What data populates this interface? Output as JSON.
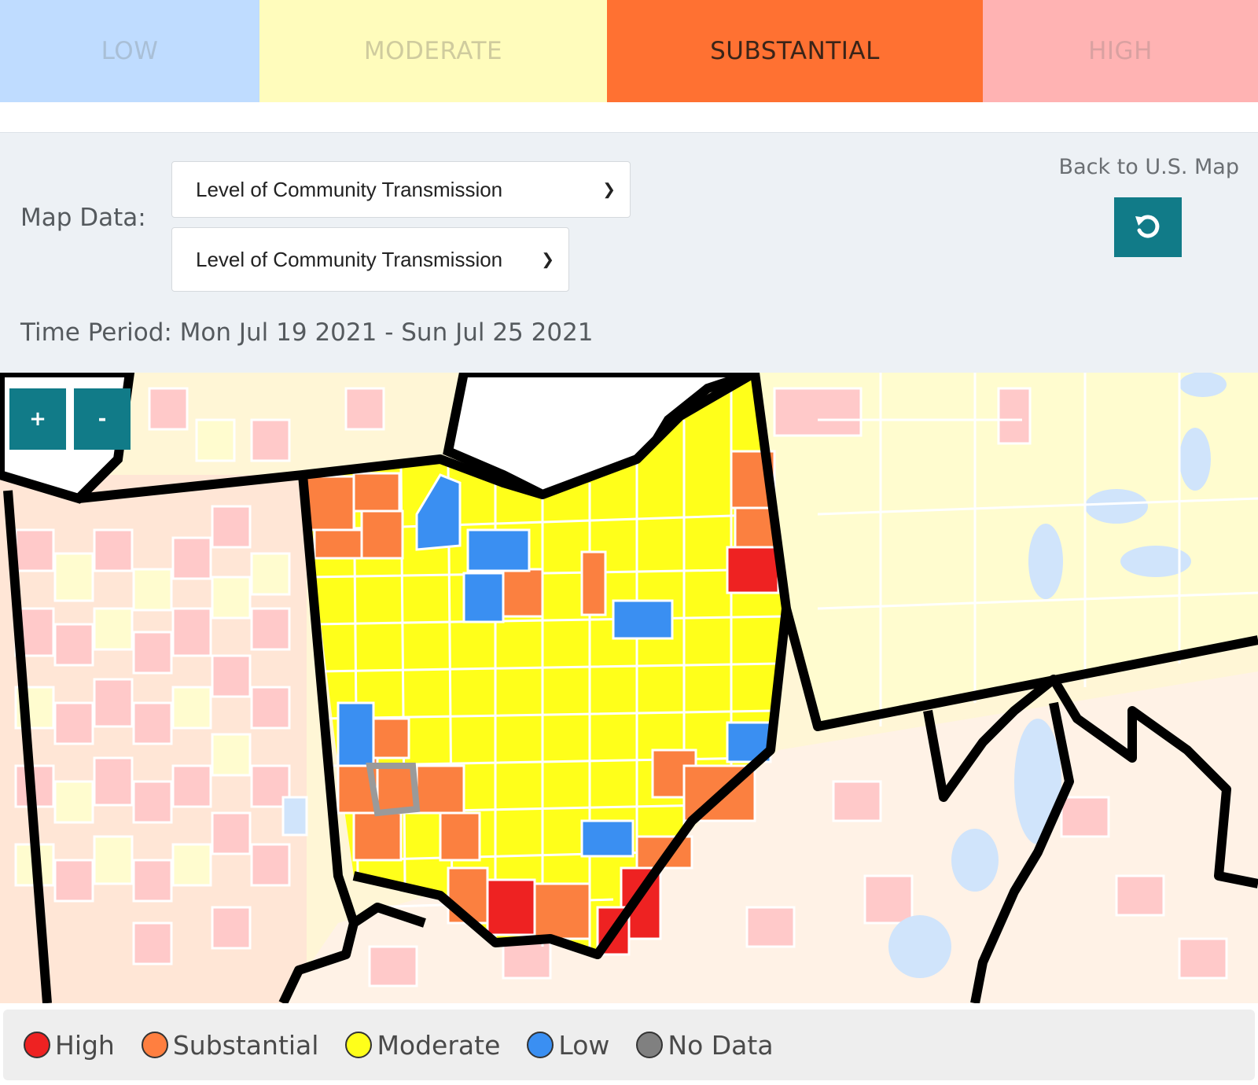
{
  "levels": [
    {
      "label": "LOW"
    },
    {
      "label": "MODERATE"
    },
    {
      "label": "SUBSTANTIAL"
    },
    {
      "label": "HIGH"
    }
  ],
  "controls": {
    "map_data_label": "Map Data:",
    "select_primary": "Level of Community Transmission",
    "select_secondary": "Level of Community Transmission",
    "back_label": "Back to U.S. Map",
    "reset_icon": "undo-arrow-icon",
    "time_period": "Time Period: Mon Jul 19 2021 - Sun Jul 25 2021"
  },
  "zoom": {
    "in_label": "+",
    "out_label": "-"
  },
  "legend": [
    {
      "label": "High",
      "color": "#ee2222"
    },
    {
      "label": "Substantial",
      "color": "#ff7f40"
    },
    {
      "label": "Moderate",
      "color": "#ffff1a"
    },
    {
      "label": "Low",
      "color": "#3a8ff2"
    },
    {
      "label": "No Data",
      "color": "#808080"
    }
  ],
  "colors": {
    "teal_button": "#117b88",
    "high": "#ee2222",
    "substantial": "#fb8040",
    "moderate": "#ffff1a",
    "low": "#3a8ff2",
    "faded_high": "#ffc9c9",
    "faded_moderate": "#fffccf",
    "faded_low": "#d0e4fb"
  }
}
